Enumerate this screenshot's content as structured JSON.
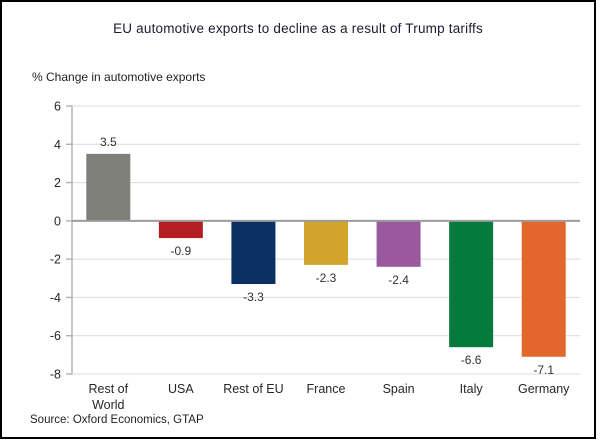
{
  "page": {
    "title": "EU automotive exports to decline as a result of Trump tariffs",
    "subtitle": "% Change in automotive exports",
    "source": "Source: Oxford Economics, GTAP"
  },
  "chart_data": {
    "type": "bar",
    "title": "EU automotive exports to decline as a result of Trump tariffs",
    "ylabel": "% Change in automotive exports",
    "source": "Source: Oxford Economics, GTAP",
    "categories": [
      "Rest of\nWorld",
      "USA",
      "Rest of EU",
      "France",
      "Spain",
      "Italy",
      "Germany"
    ],
    "values": [
      3.5,
      -0.9,
      -3.3,
      -2.3,
      -2.4,
      -6.6,
      -7.1
    ],
    "data_labels": [
      "3.5",
      "-0.9",
      "-3.3",
      "-2.3",
      "-2.4",
      "-6.6",
      "-7.1"
    ],
    "bar_colors": [
      "#7F7F7A",
      "#B41E23",
      "#0A3161",
      "#D2A42A",
      "#9A599E",
      "#047A3C",
      "#E2672B"
    ],
    "ylim": [
      -8,
      6
    ],
    "yticks": [
      6,
      4,
      2,
      0,
      -2,
      -4,
      -6,
      -8
    ],
    "grid": true,
    "legend": false,
    "gridline_color": "#DCDCDC",
    "zeroline_color": "#9C9C9C",
    "axis_color": "#AFAFAF",
    "label_color": "#262626"
  }
}
